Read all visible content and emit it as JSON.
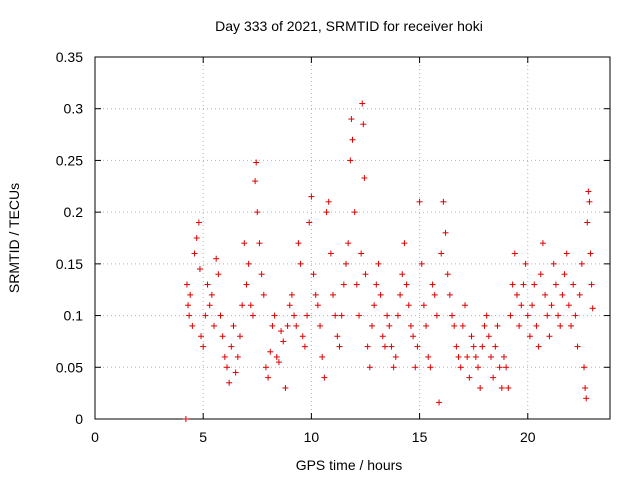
{
  "chart_data": {
    "type": "scatter",
    "title": "Day 333 of 2021, SRMTID for receiver hoki",
    "xlabel": "GPS time / hours",
    "ylabel": "SRMTID / TECUs",
    "xlim": [
      0,
      23.8
    ],
    "ylim": [
      0,
      0.35
    ],
    "x_ticks": [
      0,
      5,
      10,
      15,
      20
    ],
    "y_ticks": [
      0,
      0.05,
      0.1,
      0.15,
      0.2,
      0.25,
      0.3,
      0.35
    ],
    "x_tick_labels": [
      "0",
      "5",
      "10",
      "15",
      "20"
    ],
    "y_tick_labels": [
      "0",
      "0.05",
      "0.1",
      "0.15",
      "0.2",
      "0.25",
      "0.3",
      "0.35"
    ],
    "grid": true,
    "marker": "+",
    "color": "#e00000",
    "series": [
      {
        "name": "SRMTID",
        "points": [
          [
            4.2,
            0.0
          ],
          [
            4.25,
            0.13
          ],
          [
            4.3,
            0.11
          ],
          [
            4.35,
            0.1
          ],
          [
            4.4,
            0.12
          ],
          [
            4.5,
            0.09
          ],
          [
            4.6,
            0.16
          ],
          [
            4.7,
            0.175
          ],
          [
            4.8,
            0.19
          ],
          [
            4.85,
            0.145
          ],
          [
            4.9,
            0.08
          ],
          [
            5.0,
            0.07
          ],
          [
            5.1,
            0.1
          ],
          [
            5.2,
            0.13
          ],
          [
            5.3,
            0.11
          ],
          [
            5.4,
            0.12
          ],
          [
            5.5,
            0.09
          ],
          [
            5.6,
            0.155
          ],
          [
            5.7,
            0.14
          ],
          [
            5.8,
            0.1
          ],
          [
            5.9,
            0.08
          ],
          [
            6.0,
            0.06
          ],
          [
            6.1,
            0.05
          ],
          [
            6.2,
            0.035
          ],
          [
            6.3,
            0.07
          ],
          [
            6.4,
            0.09
          ],
          [
            6.5,
            0.045
          ],
          [
            6.6,
            0.06
          ],
          [
            6.7,
            0.08
          ],
          [
            6.8,
            0.11
          ],
          [
            6.9,
            0.17
          ],
          [
            7.0,
            0.13
          ],
          [
            7.1,
            0.15
          ],
          [
            7.2,
            0.11
          ],
          [
            7.3,
            0.1
          ],
          [
            7.4,
            0.23
          ],
          [
            7.45,
            0.248
          ],
          [
            7.5,
            0.2
          ],
          [
            7.6,
            0.17
          ],
          [
            7.7,
            0.14
          ],
          [
            7.8,
            0.12
          ],
          [
            7.9,
            0.05
          ],
          [
            8.0,
            0.04
          ],
          [
            8.1,
            0.065
          ],
          [
            8.2,
            0.09
          ],
          [
            8.3,
            0.1
          ],
          [
            8.4,
            0.06
          ],
          [
            8.5,
            0.055
          ],
          [
            8.6,
            0.085
          ],
          [
            8.7,
            0.075
          ],
          [
            8.8,
            0.03
          ],
          [
            8.9,
            0.09
          ],
          [
            9.0,
            0.11
          ],
          [
            9.1,
            0.12
          ],
          [
            9.2,
            0.1
          ],
          [
            9.3,
            0.09
          ],
          [
            9.4,
            0.17
          ],
          [
            9.5,
            0.15
          ],
          [
            9.6,
            0.08
          ],
          [
            9.7,
            0.07
          ],
          [
            9.8,
            0.1
          ],
          [
            9.9,
            0.19
          ],
          [
            10.0,
            0.215
          ],
          [
            10.1,
            0.14
          ],
          [
            10.2,
            0.12
          ],
          [
            10.3,
            0.11
          ],
          [
            10.4,
            0.09
          ],
          [
            10.5,
            0.06
          ],
          [
            10.6,
            0.04
          ],
          [
            10.7,
            0.2
          ],
          [
            10.8,
            0.21
          ],
          [
            10.9,
            0.16
          ],
          [
            11.0,
            0.12
          ],
          [
            11.1,
            0.1
          ],
          [
            11.2,
            0.08
          ],
          [
            11.3,
            0.07
          ],
          [
            11.4,
            0.1
          ],
          [
            11.5,
            0.13
          ],
          [
            11.6,
            0.15
          ],
          [
            11.7,
            0.17
          ],
          [
            11.8,
            0.25
          ],
          [
            11.85,
            0.29
          ],
          [
            11.9,
            0.27
          ],
          [
            12.0,
            0.2
          ],
          [
            12.1,
            0.13
          ],
          [
            12.2,
            0.1
          ],
          [
            12.3,
            0.16
          ],
          [
            12.35,
            0.305
          ],
          [
            12.4,
            0.285
          ],
          [
            12.45,
            0.233
          ],
          [
            12.5,
            0.14
          ],
          [
            12.6,
            0.07
          ],
          [
            12.7,
            0.05
          ],
          [
            12.8,
            0.09
          ],
          [
            12.9,
            0.11
          ],
          [
            13.0,
            0.13
          ],
          [
            13.1,
            0.15
          ],
          [
            13.2,
            0.12
          ],
          [
            13.3,
            0.08
          ],
          [
            13.4,
            0.07
          ],
          [
            13.5,
            0.1
          ],
          [
            13.6,
            0.09
          ],
          [
            13.7,
            0.07
          ],
          [
            13.8,
            0.05
          ],
          [
            13.9,
            0.06
          ],
          [
            14.0,
            0.1
          ],
          [
            14.1,
            0.12
          ],
          [
            14.2,
            0.14
          ],
          [
            14.3,
            0.17
          ],
          [
            14.4,
            0.13
          ],
          [
            14.5,
            0.11
          ],
          [
            14.6,
            0.09
          ],
          [
            14.7,
            0.08
          ],
          [
            14.8,
            0.05
          ],
          [
            14.9,
            0.07
          ],
          [
            15.0,
            0.21
          ],
          [
            15.1,
            0.15
          ],
          [
            15.2,
            0.11
          ],
          [
            15.3,
            0.09
          ],
          [
            15.4,
            0.06
          ],
          [
            15.5,
            0.05
          ],
          [
            15.6,
            0.13
          ],
          [
            15.7,
            0.12
          ],
          [
            15.8,
            0.1
          ],
          [
            15.9,
            0.016
          ],
          [
            16.0,
            0.16
          ],
          [
            16.1,
            0.21
          ],
          [
            16.2,
            0.18
          ],
          [
            16.3,
            0.14
          ],
          [
            16.4,
            0.12
          ],
          [
            16.5,
            0.1
          ],
          [
            16.6,
            0.09
          ],
          [
            16.7,
            0.07
          ],
          [
            16.8,
            0.06
          ],
          [
            16.9,
            0.05
          ],
          [
            17.0,
            0.09
          ],
          [
            17.1,
            0.11
          ],
          [
            17.2,
            0.06
          ],
          [
            17.3,
            0.04
          ],
          [
            17.4,
            0.08
          ],
          [
            17.5,
            0.07
          ],
          [
            17.6,
            0.06
          ],
          [
            17.7,
            0.05
          ],
          [
            17.8,
            0.03
          ],
          [
            17.9,
            0.07
          ],
          [
            18.0,
            0.09
          ],
          [
            18.1,
            0.1
          ],
          [
            18.2,
            0.08
          ],
          [
            18.3,
            0.06
          ],
          [
            18.4,
            0.04
          ],
          [
            18.5,
            0.07
          ],
          [
            18.6,
            0.09
          ],
          [
            18.7,
            0.05
          ],
          [
            18.8,
            0.03
          ],
          [
            18.9,
            0.06
          ],
          [
            19.0,
            0.05
          ],
          [
            19.1,
            0.03
          ],
          [
            19.2,
            0.1
          ],
          [
            19.3,
            0.13
          ],
          [
            19.4,
            0.16
          ],
          [
            19.5,
            0.12
          ],
          [
            19.6,
            0.09
          ],
          [
            19.7,
            0.11
          ],
          [
            19.8,
            0.13
          ],
          [
            19.9,
            0.15
          ],
          [
            20.0,
            0.1
          ],
          [
            20.1,
            0.08
          ],
          [
            20.2,
            0.11
          ],
          [
            20.3,
            0.13
          ],
          [
            20.4,
            0.09
          ],
          [
            20.5,
            0.07
          ],
          [
            20.6,
            0.14
          ],
          [
            20.7,
            0.17
          ],
          [
            20.8,
            0.12
          ],
          [
            20.9,
            0.1
          ],
          [
            21.0,
            0.08
          ],
          [
            21.1,
            0.11
          ],
          [
            21.2,
            0.15
          ],
          [
            21.3,
            0.13
          ],
          [
            21.4,
            0.1
          ],
          [
            21.5,
            0.09
          ],
          [
            21.6,
            0.12
          ],
          [
            21.7,
            0.14
          ],
          [
            21.8,
            0.16
          ],
          [
            21.9,
            0.11
          ],
          [
            22.0,
            0.09
          ],
          [
            22.1,
            0.13
          ],
          [
            22.2,
            0.1
          ],
          [
            22.3,
            0.07
          ],
          [
            22.4,
            0.12
          ],
          [
            22.5,
            0.15
          ],
          [
            22.6,
            0.05
          ],
          [
            22.65,
            0.03
          ],
          [
            22.7,
            0.02
          ],
          [
            22.75,
            0.19
          ],
          [
            22.8,
            0.22
          ],
          [
            22.85,
            0.21
          ],
          [
            22.9,
            0.16
          ],
          [
            22.95,
            0.13
          ],
          [
            23.0,
            0.107
          ]
        ]
      }
    ]
  }
}
